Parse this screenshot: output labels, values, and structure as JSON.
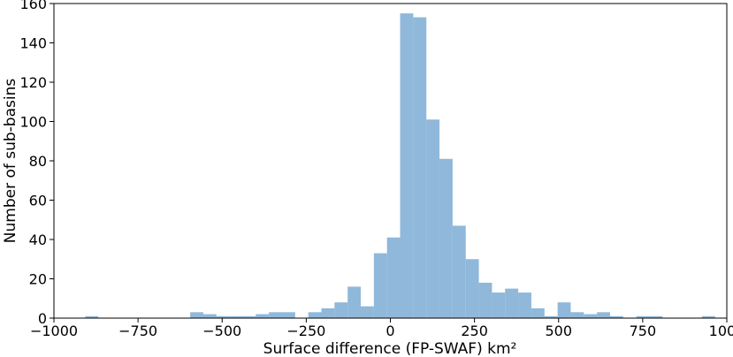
{
  "chart_data": {
    "type": "bar",
    "subtype": "histogram",
    "title": "",
    "xlabel": "Surface difference (FP-SWAF) km²",
    "ylabel": "Number of sub-basins",
    "xlim": [
      -1000,
      1000
    ],
    "ylim": [
      0,
      160
    ],
    "xticks": [
      -1000,
      -750,
      -500,
      -250,
      0,
      250,
      500,
      750,
      1000
    ],
    "xtick_labels": [
      "−1000",
      "−750",
      "−500",
      "−250",
      "0",
      "250",
      "500",
      "750",
      "1000"
    ],
    "yticks": [
      0,
      20,
      40,
      60,
      80,
      100,
      120,
      140,
      160
    ],
    "ytick_labels": [
      "0",
      "20",
      "40",
      "60",
      "80",
      "100",
      "120",
      "140",
      "160"
    ],
    "grid": false,
    "bar_color": "#8fb8da",
    "bins": [
      {
        "x0": -907,
        "x1": -868,
        "count": 1
      },
      {
        "x0": -868,
        "x1": -829,
        "count": 0
      },
      {
        "x0": -829,
        "x1": -790,
        "count": 0
      },
      {
        "x0": -790,
        "x1": -751,
        "count": 0
      },
      {
        "x0": -751,
        "x1": -712,
        "count": 0
      },
      {
        "x0": -712,
        "x1": -673,
        "count": 0
      },
      {
        "x0": -673,
        "x1": -634,
        "count": 0
      },
      {
        "x0": -634,
        "x1": -595,
        "count": 0
      },
      {
        "x0": -595,
        "x1": -556,
        "count": 3
      },
      {
        "x0": -556,
        "x1": -517,
        "count": 2
      },
      {
        "x0": -517,
        "x1": -478,
        "count": 1
      },
      {
        "x0": -478,
        "x1": -439,
        "count": 1
      },
      {
        "x0": -439,
        "x1": -400,
        "count": 1
      },
      {
        "x0": -400,
        "x1": -361,
        "count": 2
      },
      {
        "x0": -361,
        "x1": -322,
        "count": 3
      },
      {
        "x0": -322,
        "x1": -283,
        "count": 3
      },
      {
        "x0": -283,
        "x1": -244,
        "count": 0
      },
      {
        "x0": -244,
        "x1": -205,
        "count": 3
      },
      {
        "x0": -205,
        "x1": -166,
        "count": 5
      },
      {
        "x0": -166,
        "x1": -127,
        "count": 8
      },
      {
        "x0": -127,
        "x1": -88,
        "count": 16
      },
      {
        "x0": -88,
        "x1": -49,
        "count": 6
      },
      {
        "x0": -49,
        "x1": -10,
        "count": 33
      },
      {
        "x0": -10,
        "x1": 29,
        "count": 41
      },
      {
        "x0": 29,
        "x1": 68,
        "count": 155
      },
      {
        "x0": 68,
        "x1": 107,
        "count": 153
      },
      {
        "x0": 107,
        "x1": 146,
        "count": 101
      },
      {
        "x0": 146,
        "x1": 185,
        "count": 81
      },
      {
        "x0": 185,
        "x1": 224,
        "count": 47
      },
      {
        "x0": 224,
        "x1": 263,
        "count": 30
      },
      {
        "x0": 263,
        "x1": 302,
        "count": 18
      },
      {
        "x0": 302,
        "x1": 341,
        "count": 13
      },
      {
        "x0": 341,
        "x1": 380,
        "count": 15
      },
      {
        "x0": 380,
        "x1": 419,
        "count": 13
      },
      {
        "x0": 419,
        "x1": 458,
        "count": 5
      },
      {
        "x0": 458,
        "x1": 497,
        "count": 1
      },
      {
        "x0": 497,
        "x1": 536,
        "count": 8
      },
      {
        "x0": 536,
        "x1": 575,
        "count": 3
      },
      {
        "x0": 575,
        "x1": 614,
        "count": 2
      },
      {
        "x0": 614,
        "x1": 653,
        "count": 3
      },
      {
        "x0": 653,
        "x1": 692,
        "count": 1
      },
      {
        "x0": 692,
        "x1": 731,
        "count": 0
      },
      {
        "x0": 731,
        "x1": 770,
        "count": 1
      },
      {
        "x0": 770,
        "x1": 809,
        "count": 1
      },
      {
        "x0": 809,
        "x1": 848,
        "count": 0
      },
      {
        "x0": 848,
        "x1": 887,
        "count": 0
      },
      {
        "x0": 887,
        "x1": 926,
        "count": 0
      },
      {
        "x0": 926,
        "x1": 965,
        "count": 1
      }
    ]
  }
}
